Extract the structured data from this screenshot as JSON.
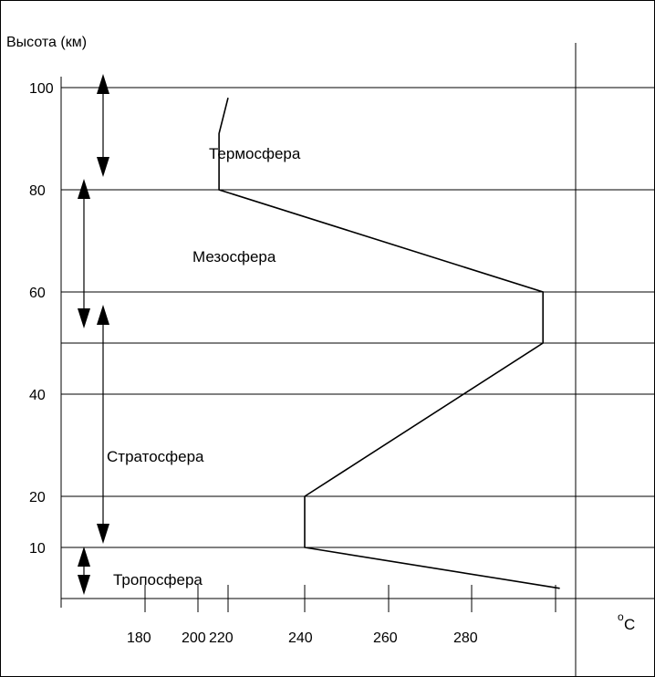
{
  "chart_data": {
    "type": "line",
    "title": "",
    "ylabel": "Высота (км)",
    "xlabel_unit": "C",
    "xlabel_degree": "o",
    "y_ticks": [
      10,
      20,
      40,
      60,
      80,
      100
    ],
    "x_ticks": [
      180,
      200,
      220,
      240,
      260,
      280
    ],
    "temperature_profile": {
      "x": [
        301,
        240,
        240,
        297,
        297,
        214,
        214,
        220
      ],
      "y": [
        2,
        10,
        20,
        50,
        60,
        80,
        91,
        98
      ]
    },
    "layers": [
      {
        "name": "Тропосфера",
        "from": 0,
        "to": 10
      },
      {
        "name": "Стратосфера",
        "from": 10,
        "to": 50
      },
      {
        "name": "Мезосфера",
        "from": 50,
        "to": 80
      },
      {
        "name": "Термосфера",
        "from": 80,
        "to": 100
      }
    ],
    "grid": true
  }
}
